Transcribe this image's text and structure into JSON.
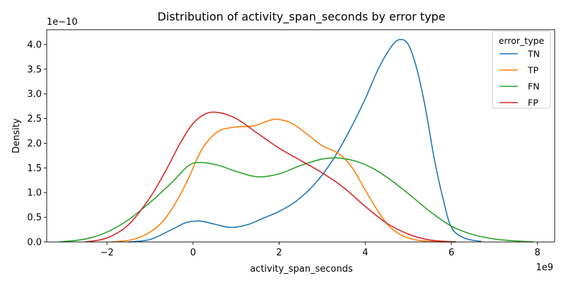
{
  "chart_data": {
    "type": "line",
    "title": "Distribution of activity_span_seconds by error type",
    "xlabel": "activity_span_seconds",
    "ylabel": "Density",
    "x_offset_label": "1e9",
    "y_offset_label": "1e−10",
    "xlim": [
      -3.4,
      8.4
    ],
    "ylim": [
      0,
      4.3
    ],
    "x_ticks": [
      {
        "value": -2,
        "label": "−2"
      },
      {
        "value": 0,
        "label": "0"
      },
      {
        "value": 2,
        "label": "2"
      },
      {
        "value": 4,
        "label": "4"
      },
      {
        "value": 6,
        "label": "6"
      },
      {
        "value": 8,
        "label": "8"
      }
    ],
    "y_ticks": [
      {
        "value": 0,
        "label": "0.0"
      },
      {
        "value": 0.5,
        "label": "0.5"
      },
      {
        "value": 1.0,
        "label": "1.0"
      },
      {
        "value": 1.5,
        "label": "1.5"
      },
      {
        "value": 2.0,
        "label": "2.0"
      },
      {
        "value": 2.5,
        "label": "2.5"
      },
      {
        "value": 3.0,
        "label": "3.0"
      },
      {
        "value": 3.5,
        "label": "3.5"
      },
      {
        "value": 4.0,
        "label": "4.0"
      }
    ],
    "grid": false,
    "legend": {
      "title": "error_type",
      "placement": "top-right"
    },
    "series": [
      {
        "name": "TN",
        "color": "#1f77b4",
        "x": [
          -1.5,
          -1.0,
          -0.5,
          -0.2,
          0.0,
          0.2,
          0.5,
          0.8,
          1.0,
          1.3,
          1.6,
          2.0,
          2.4,
          2.8,
          3.2,
          3.6,
          4.0,
          4.3,
          4.6,
          4.8,
          5.0,
          5.2,
          5.4,
          5.6,
          5.8,
          6.0,
          6.3,
          6.7
        ],
        "y": [
          0.0,
          0.05,
          0.25,
          0.38,
          0.42,
          0.42,
          0.36,
          0.3,
          0.3,
          0.36,
          0.47,
          0.62,
          0.83,
          1.15,
          1.6,
          2.2,
          2.9,
          3.5,
          3.95,
          4.1,
          4.0,
          3.5,
          2.7,
          1.7,
          0.9,
          0.3,
          0.08,
          0.01
        ]
      },
      {
        "name": "TP",
        "color": "#ff7f0e",
        "x": [
          -1.9,
          -1.4,
          -1.0,
          -0.7,
          -0.4,
          -0.1,
          0.1,
          0.3,
          0.6,
          1.0,
          1.4,
          1.8,
          2.0,
          2.3,
          2.7,
          3.0,
          3.4,
          3.7,
          4.0,
          4.3,
          4.6,
          5.0,
          5.5,
          6.1
        ],
        "y": [
          0.0,
          0.05,
          0.2,
          0.42,
          0.8,
          1.3,
          1.7,
          2.0,
          2.25,
          2.33,
          2.35,
          2.47,
          2.48,
          2.4,
          2.15,
          1.95,
          1.78,
          1.5,
          1.05,
          0.62,
          0.28,
          0.08,
          0.01,
          0.0
        ]
      },
      {
        "name": "FN",
        "color": "#2ca02c",
        "x": [
          -3.1,
          -2.5,
          -2.0,
          -1.5,
          -1.0,
          -0.5,
          -0.1,
          0.2,
          0.6,
          1.0,
          1.5,
          2.0,
          2.5,
          3.0,
          3.4,
          3.8,
          4.2,
          4.6,
          5.0,
          5.5,
          6.0,
          6.5,
          7.0,
          7.5,
          7.9
        ],
        "y": [
          0.0,
          0.06,
          0.2,
          0.45,
          0.8,
          1.2,
          1.55,
          1.61,
          1.55,
          1.43,
          1.32,
          1.38,
          1.55,
          1.68,
          1.7,
          1.63,
          1.48,
          1.25,
          0.98,
          0.62,
          0.32,
          0.15,
          0.06,
          0.02,
          0.0
        ]
      },
      {
        "name": "FP",
        "color": "#d62728",
        "x": [
          -2.5,
          -2.0,
          -1.5,
          -1.0,
          -0.6,
          -0.3,
          0.0,
          0.3,
          0.6,
          1.0,
          1.5,
          2.0,
          2.5,
          3.0,
          3.5,
          4.0,
          4.5,
          5.0,
          5.5,
          6.1
        ],
        "y": [
          0.0,
          0.08,
          0.35,
          0.9,
          1.5,
          2.0,
          2.4,
          2.6,
          2.62,
          2.5,
          2.2,
          1.9,
          1.65,
          1.4,
          1.1,
          0.72,
          0.38,
          0.16,
          0.04,
          0.0
        ]
      }
    ]
  }
}
